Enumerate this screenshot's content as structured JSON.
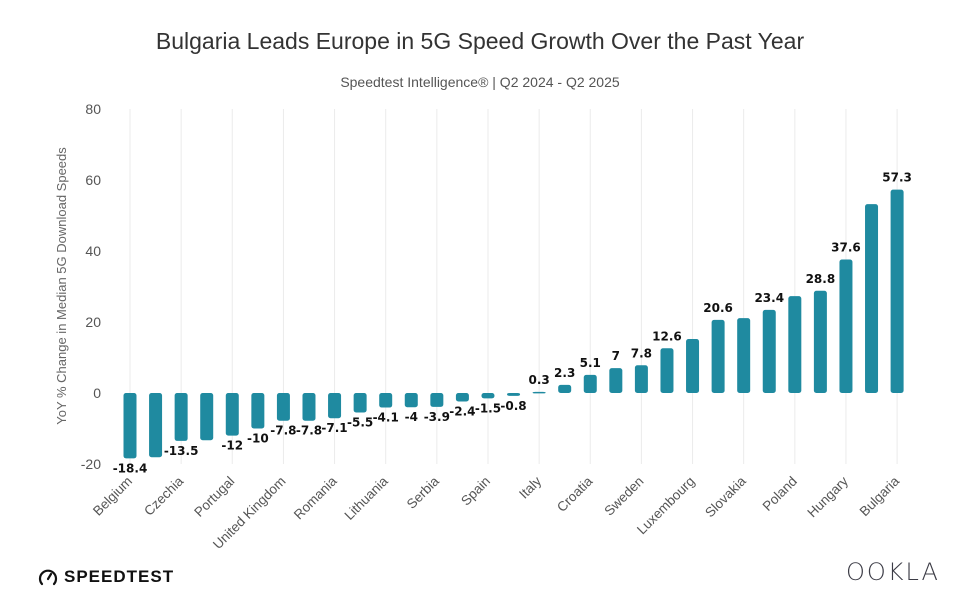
{
  "chart_data": {
    "type": "bar",
    "title": "Bulgaria Leads Europe in 5G Speed Growth Over the Past Year",
    "subtitle": "Speedtest Intelligence® | Q2 2024 - Q2 2025",
    "xlabel": "",
    "ylabel": "YoY % Change in Median 5G Download Speeds",
    "ylim": [
      -20,
      80
    ],
    "yticks": [
      -20,
      0,
      20,
      40,
      60,
      80
    ],
    "grid": "vertical",
    "legend": "none",
    "color": "#1f8aa0",
    "categories": [
      "Belgium",
      "",
      "Czechia",
      "",
      "Portugal",
      "",
      "United Kingdom",
      "",
      "Romania",
      "",
      "Lithuania",
      "",
      "Serbia",
      "",
      "Spain",
      "",
      "Italy",
      "",
      "Croatia",
      "",
      "Sweden",
      "",
      "Luxembourg",
      "",
      "Slovakia",
      "",
      "Poland",
      "",
      "Hungary",
      "",
      "Bulgaria"
    ],
    "values": [
      -18.4,
      -18.1,
      -13.5,
      -13.3,
      -12,
      -10,
      -7.8,
      -7.8,
      -7.1,
      -5.5,
      -4.1,
      -4,
      -3.9,
      -2.4,
      -1.5,
      -0.8,
      0.3,
      2.3,
      5.1,
      7,
      7.8,
      12.6,
      15.2,
      20.6,
      21.1,
      23.4,
      27.3,
      28.8,
      37.6,
      53.2,
      57.3
    ],
    "data_labels": [
      "-18.4",
      "",
      "-13.5",
      "",
      "-12",
      "-10",
      "-7.8",
      "-7.8",
      "-7.1",
      "-5.5",
      "-4.1",
      "-4",
      "-3.9",
      "-2.4",
      "-1.5",
      "-0.8",
      "0.3",
      "2.3",
      "5.1",
      "7",
      "7.8",
      "12.6",
      "",
      "20.6",
      "",
      "23.4",
      "",
      "28.8",
      "37.6",
      "",
      "57.3"
    ]
  },
  "branding": {
    "left_logo": "SPEEDTEST",
    "left_icon": "speedometer-icon",
    "right_logo": "OOKLA"
  }
}
